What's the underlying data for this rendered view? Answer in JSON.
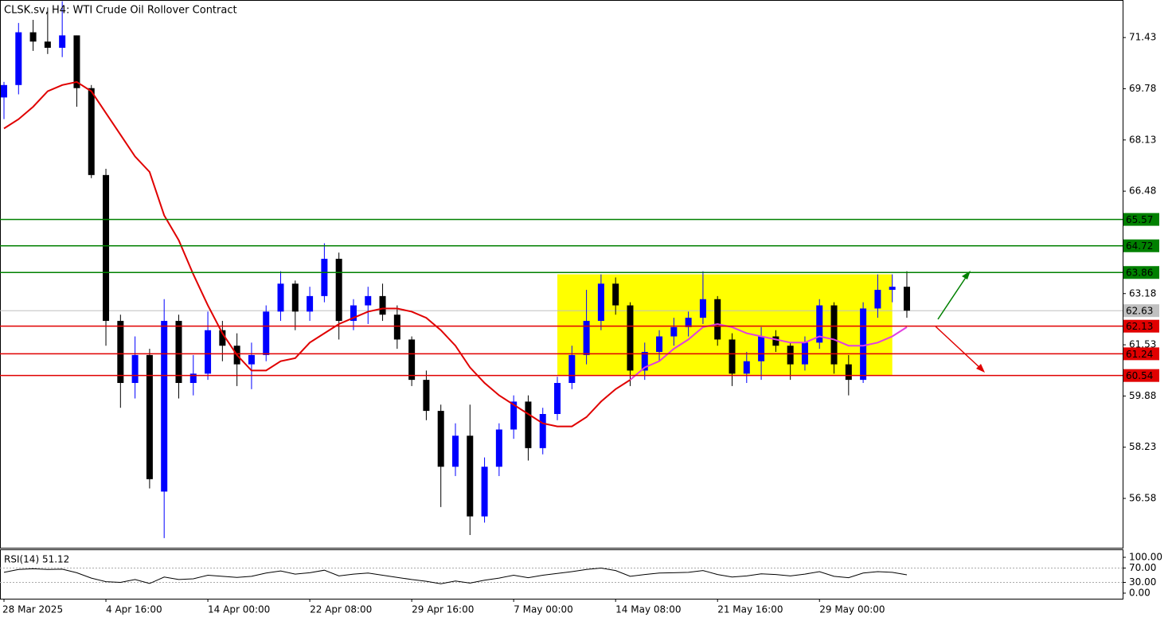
{
  "chart_data": {
    "type": "candlestick",
    "title": "CLSK.sv, H4:  WTI Crude Oil Rollover Contract",
    "categories": [
      "28 Mar 2025",
      null,
      null,
      null,
      null,
      null,
      null,
      "4 Apr 16:00",
      null,
      null,
      null,
      null,
      null,
      null,
      "14 Apr 00:00",
      null,
      null,
      null,
      null,
      null,
      null,
      "22 Apr 08:00",
      null,
      null,
      null,
      null,
      null,
      null,
      "29 Apr 16:00",
      null,
      null,
      null,
      null,
      null,
      null,
      "7 May 00:00",
      null,
      null,
      null,
      null,
      null,
      null,
      "14 May 08:00",
      null,
      null,
      null,
      null,
      null,
      null,
      "21 May 16:00",
      null,
      null,
      null,
      null,
      null,
      null,
      "29 May 00:00",
      null,
      null,
      null,
      null,
      null,
      null
    ],
    "candles": {
      "up_color": "#0000ff",
      "down_color": "#000000",
      "open": [
        69.5,
        69.9,
        71.6,
        71.3,
        71.1,
        71.5,
        69.8,
        67.0,
        62.3,
        60.3,
        61.2,
        56.8,
        62.3,
        60.3,
        60.6,
        62.0,
        61.5,
        60.9,
        61.2,
        62.6,
        63.5,
        62.6,
        63.1,
        64.3,
        62.3,
        62.8,
        63.1,
        62.5,
        61.7,
        60.4,
        59.4,
        57.6,
        58.6,
        56.0,
        57.6,
        58.8,
        59.7,
        58.2,
        59.3,
        60.3,
        61.2,
        62.3,
        63.5,
        62.8,
        60.7,
        61.3,
        61.8,
        62.1,
        62.4,
        63.0,
        61.7,
        60.6,
        61.0,
        61.8,
        61.5,
        60.9,
        61.6,
        62.8,
        60.9,
        60.4,
        62.7,
        63.3,
        63.4
      ],
      "high": [
        70.0,
        71.9,
        72.0,
        72.4,
        72.6,
        71.5,
        69.9,
        67.2,
        62.5,
        61.8,
        61.4,
        63.0,
        62.5,
        61.2,
        62.6,
        62.3,
        61.9,
        61.6,
        62.8,
        63.9,
        63.6,
        63.4,
        64.8,
        64.5,
        63.0,
        63.4,
        63.5,
        62.8,
        61.8,
        60.7,
        59.6,
        59.0,
        59.6,
        57.9,
        59.0,
        59.9,
        59.9,
        59.5,
        60.5,
        61.5,
        63.3,
        63.8,
        63.7,
        62.9,
        61.6,
        62.0,
        62.4,
        62.6,
        63.9,
        63.1,
        61.9,
        61.3,
        62.1,
        62.0,
        61.6,
        61.8,
        63.0,
        62.9,
        61.2,
        62.9,
        63.8,
        63.8,
        63.9
      ],
      "low": [
        68.8,
        69.6,
        71.0,
        70.9,
        70.8,
        69.2,
        66.9,
        61.5,
        59.5,
        59.8,
        56.9,
        55.3,
        59.8,
        59.9,
        60.4,
        61.0,
        60.2,
        60.1,
        61.0,
        62.3,
        62.0,
        62.3,
        62.9,
        61.7,
        62.0,
        62.2,
        62.3,
        61.4,
        60.2,
        59.1,
        56.3,
        57.3,
        55.4,
        55.8,
        57.3,
        58.5,
        57.8,
        58.0,
        59.1,
        60.1,
        60.9,
        62.0,
        62.5,
        60.2,
        60.4,
        61.0,
        61.5,
        61.8,
        62.2,
        61.5,
        60.2,
        60.3,
        60.4,
        61.3,
        60.4,
        60.7,
        61.4,
        60.6,
        59.9,
        60.3,
        62.4,
        62.9,
        62.4
      ],
      "close": [
        69.9,
        71.6,
        71.3,
        71.1,
        71.5,
        69.8,
        67.0,
        62.3,
        60.3,
        61.2,
        57.2,
        62.3,
        60.3,
        60.6,
        62.0,
        61.5,
        60.9,
        61.2,
        62.6,
        63.5,
        62.6,
        63.1,
        64.3,
        62.3,
        62.8,
        63.1,
        62.5,
        61.7,
        60.4,
        59.4,
        57.6,
        58.6,
        56.0,
        57.6,
        58.8,
        59.7,
        58.2,
        59.3,
        60.3,
        61.2,
        62.3,
        63.5,
        62.8,
        60.7,
        61.3,
        61.8,
        62.1,
        62.4,
        63.0,
        61.7,
        60.6,
        61.0,
        61.8,
        61.5,
        60.9,
        61.6,
        62.8,
        60.9,
        60.4,
        62.7,
        63.3,
        63.4,
        62.63
      ]
    },
    "ma_lines": [
      {
        "color": "#e00000",
        "values": [
          68.5,
          68.8,
          69.2,
          69.7,
          69.9,
          70.0,
          69.7,
          69.0,
          68.3,
          67.6,
          67.1,
          65.7,
          64.9,
          63.8,
          62.8,
          61.9,
          61.2,
          60.7,
          60.7,
          61.0,
          61.1,
          61.6,
          61.9,
          62.2,
          62.4,
          62.6,
          62.7,
          62.7,
          62.6,
          62.4,
          62.0,
          61.5,
          60.8,
          60.3,
          59.9,
          59.6,
          59.3,
          59.0,
          58.9,
          58.9,
          59.2,
          59.7,
          60.1,
          60.4,
          null,
          null,
          null,
          null,
          null,
          null,
          null,
          null,
          null,
          null,
          null,
          null,
          null,
          null,
          null,
          null,
          null,
          null,
          null
        ]
      },
      {
        "color": "#e040e0",
        "values": [
          null,
          null,
          null,
          null,
          null,
          null,
          null,
          null,
          null,
          null,
          null,
          null,
          null,
          null,
          null,
          null,
          null,
          null,
          null,
          null,
          null,
          null,
          null,
          null,
          null,
          null,
          null,
          null,
          null,
          null,
          null,
          null,
          null,
          null,
          null,
          null,
          null,
          null,
          null,
          null,
          null,
          null,
          null,
          60.4,
          60.8,
          61.0,
          61.4,
          61.7,
          62.1,
          62.2,
          62.1,
          61.9,
          61.8,
          61.7,
          61.6,
          61.6,
          61.8,
          61.7,
          61.5,
          61.5,
          61.6,
          61.8,
          62.1
        ]
      }
    ],
    "zone": {
      "color": "#ffff00",
      "top": 63.8,
      "bottom": 60.55,
      "from_index": 38,
      "to_index": 61
    },
    "levels": [
      {
        "value": 65.57,
        "color": "#008000"
      },
      {
        "value": 64.72,
        "color": "#008000"
      },
      {
        "value": 63.86,
        "color": "#008000"
      },
      {
        "value": 62.13,
        "color": "#e00000"
      },
      {
        "value": 61.24,
        "color": "#e00000"
      },
      {
        "value": 60.54,
        "color": "#e00000"
      }
    ],
    "current_price": {
      "value": 62.63,
      "color": "#c0c0c0"
    },
    "ylim": [
      54.99,
      72.64
    ],
    "yticks": [
      71.43,
      69.78,
      68.13,
      66.48,
      63.18,
      61.53,
      59.88,
      58.23,
      56.58
    ],
    "rsi": {
      "label": "RSI(14) 51.12",
      "values": [
        58,
        66,
        68,
        66,
        67,
        57,
        42,
        32,
        30,
        38,
        27,
        45,
        38,
        40,
        50,
        47,
        44,
        47,
        56,
        62,
        53,
        57,
        64,
        48,
        53,
        56,
        50,
        44,
        38,
        33,
        26,
        34,
        28,
        36,
        42,
        50,
        43,
        50,
        55,
        60,
        66,
        70,
        63,
        47,
        52,
        56,
        57,
        58,
        63,
        52,
        45,
        48,
        54,
        52,
        48,
        53,
        60,
        47,
        43,
        56,
        60,
        58,
        51.12
      ],
      "ylim": [
        0,
        100
      ],
      "yticks": [
        {
          "value": 100,
          "label": "100.00"
        },
        {
          "value": 70,
          "label": "70.00"
        },
        {
          "value": 30,
          "label": "30.00"
        },
        {
          "value": 0,
          "label": "0.00"
        }
      ]
    }
  }
}
